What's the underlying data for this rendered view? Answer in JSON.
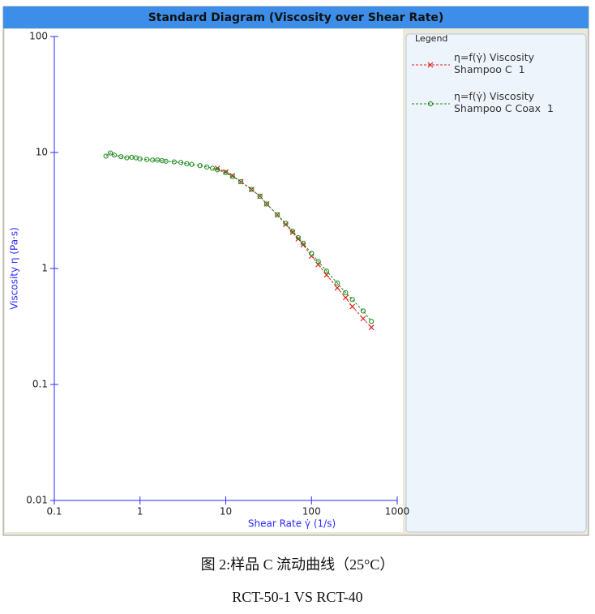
{
  "chart_data": {
    "type": "line",
    "title": "Standard Diagram (Viscosity over Shear Rate)",
    "x_label": "Shear Rate γ̇ (1/s)",
    "y_label": "Viscosity η (Pa·s)",
    "xscale": "log",
    "yscale": "log",
    "xlim": [
      0.1,
      1000
    ],
    "ylim": [
      0.01,
      100
    ],
    "xticks": [
      0.1,
      1,
      10,
      100,
      1000
    ],
    "yticks": [
      0.01,
      0.1,
      1,
      10,
      100
    ],
    "legend_title": "Legend",
    "legend_position": "right",
    "series": [
      {
        "name": "η=f(γ̇) Viscosity\nShampoo C  1",
        "color": "#e02020",
        "marker": "x",
        "x": [
          8,
          10,
          12,
          15,
          20,
          25,
          30,
          40,
          50,
          60,
          70,
          80,
          100,
          120,
          150,
          200,
          250,
          300,
          400,
          500
        ],
        "values": [
          7.3,
          6.8,
          6.3,
          5.6,
          4.8,
          4.2,
          3.6,
          2.9,
          2.4,
          2.05,
          1.8,
          1.6,
          1.28,
          1.08,
          0.88,
          0.68,
          0.56,
          0.47,
          0.37,
          0.31
        ]
      },
      {
        "name": "η=f(γ̇) Viscosity\nShampoo C Coax  1",
        "color": "#1a8a1a",
        "marker": "o",
        "x": [
          0.4,
          0.45,
          0.5,
          0.6,
          0.7,
          0.8,
          0.9,
          1.0,
          1.2,
          1.4,
          1.6,
          1.8,
          2.0,
          2.5,
          3.0,
          3.5,
          4,
          5,
          6,
          7,
          8,
          10,
          12,
          15,
          20,
          25,
          30,
          40,
          50,
          60,
          70,
          80,
          100,
          120,
          150,
          200,
          250,
          300,
          400,
          500
        ],
        "values": [
          9.3,
          9.9,
          9.5,
          9.2,
          9.0,
          9.1,
          9.0,
          8.8,
          8.7,
          8.6,
          8.6,
          8.5,
          8.4,
          8.3,
          8.2,
          8.0,
          7.9,
          7.7,
          7.5,
          7.3,
          7.1,
          6.7,
          6.2,
          5.6,
          4.8,
          4.2,
          3.6,
          2.9,
          2.45,
          2.1,
          1.85,
          1.65,
          1.35,
          1.15,
          0.95,
          0.75,
          0.62,
          0.54,
          0.43,
          0.35
        ]
      }
    ]
  },
  "caption": {
    "line1": "图 2:样品 C 流动曲线（25°C）",
    "line2": "RCT-50-1 VS RCT-40"
  }
}
